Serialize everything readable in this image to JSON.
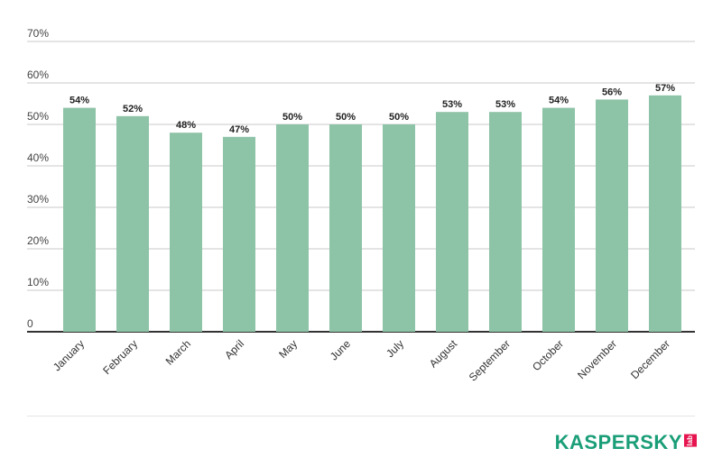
{
  "chart_data": {
    "type": "bar",
    "categories": [
      "January",
      "February",
      "March",
      "April",
      "May",
      "June",
      "July",
      "August",
      "September",
      "October",
      "November",
      "December"
    ],
    "values": [
      54,
      52,
      48,
      47,
      50,
      50,
      50,
      53,
      53,
      54,
      56,
      57
    ],
    "value_labels": [
      "54%",
      "52%",
      "48%",
      "47%",
      "50%",
      "50%",
      "50%",
      "53%",
      "53%",
      "54%",
      "56%",
      "57%"
    ],
    "yticks": [
      0,
      10,
      20,
      30,
      40,
      50,
      60,
      70
    ],
    "ytick_labels": [
      "0",
      "10%",
      "20%",
      "30%",
      "40%",
      "50%",
      "60%",
      "70%"
    ],
    "ylim": [
      0,
      70
    ],
    "grid": true,
    "bar_color": "#8dc3a7"
  },
  "brand": {
    "name": "KASPERSKY",
    "suffix": "lab",
    "color": "#1a9e78",
    "suffix_color": "#e6144f"
  }
}
